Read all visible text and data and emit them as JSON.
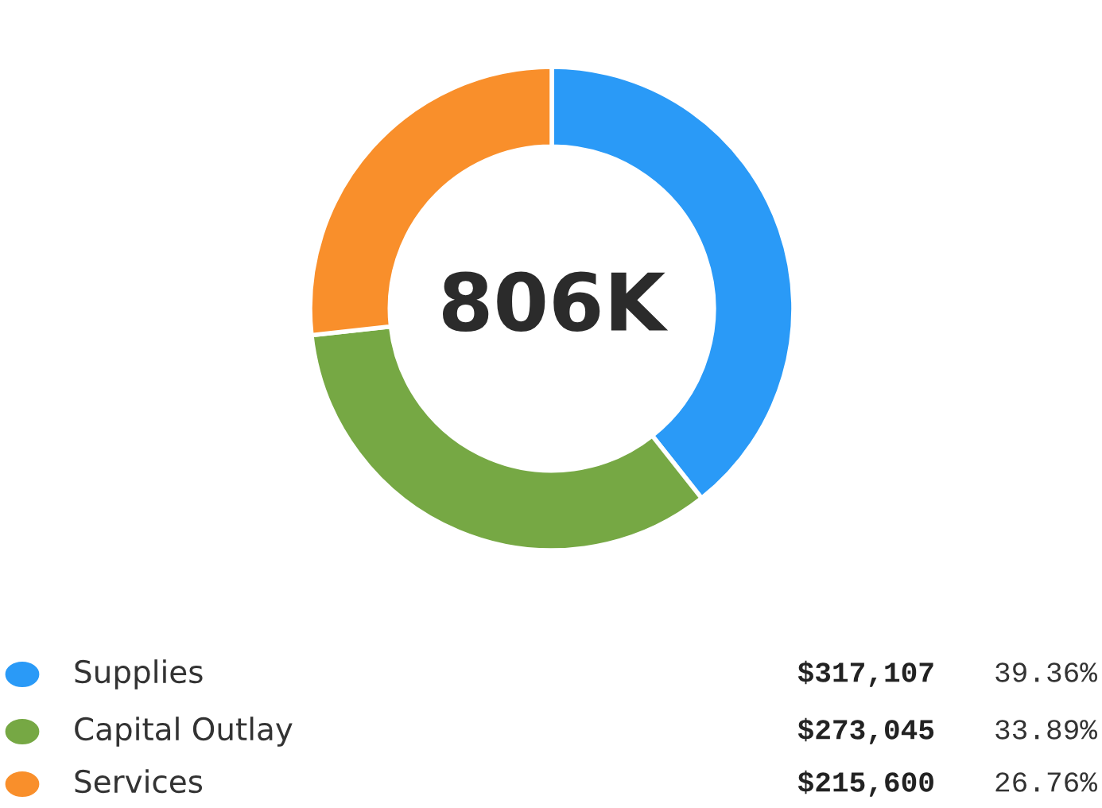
{
  "chart_data": {
    "type": "donut",
    "categories": [
      "Supplies",
      "Capital Outlay",
      "Services"
    ],
    "values": [
      317107,
      273045,
      215600
    ],
    "colors": [
      "#2a9af7",
      "#76a844",
      "#f98f2b"
    ],
    "value_labels": [
      "$317,107",
      "$273,045",
      "$215,600"
    ],
    "annotations": [
      "806K",
      "39.36%",
      "33.89%",
      "26.76%"
    ],
    "legend": "bottom"
  }
}
